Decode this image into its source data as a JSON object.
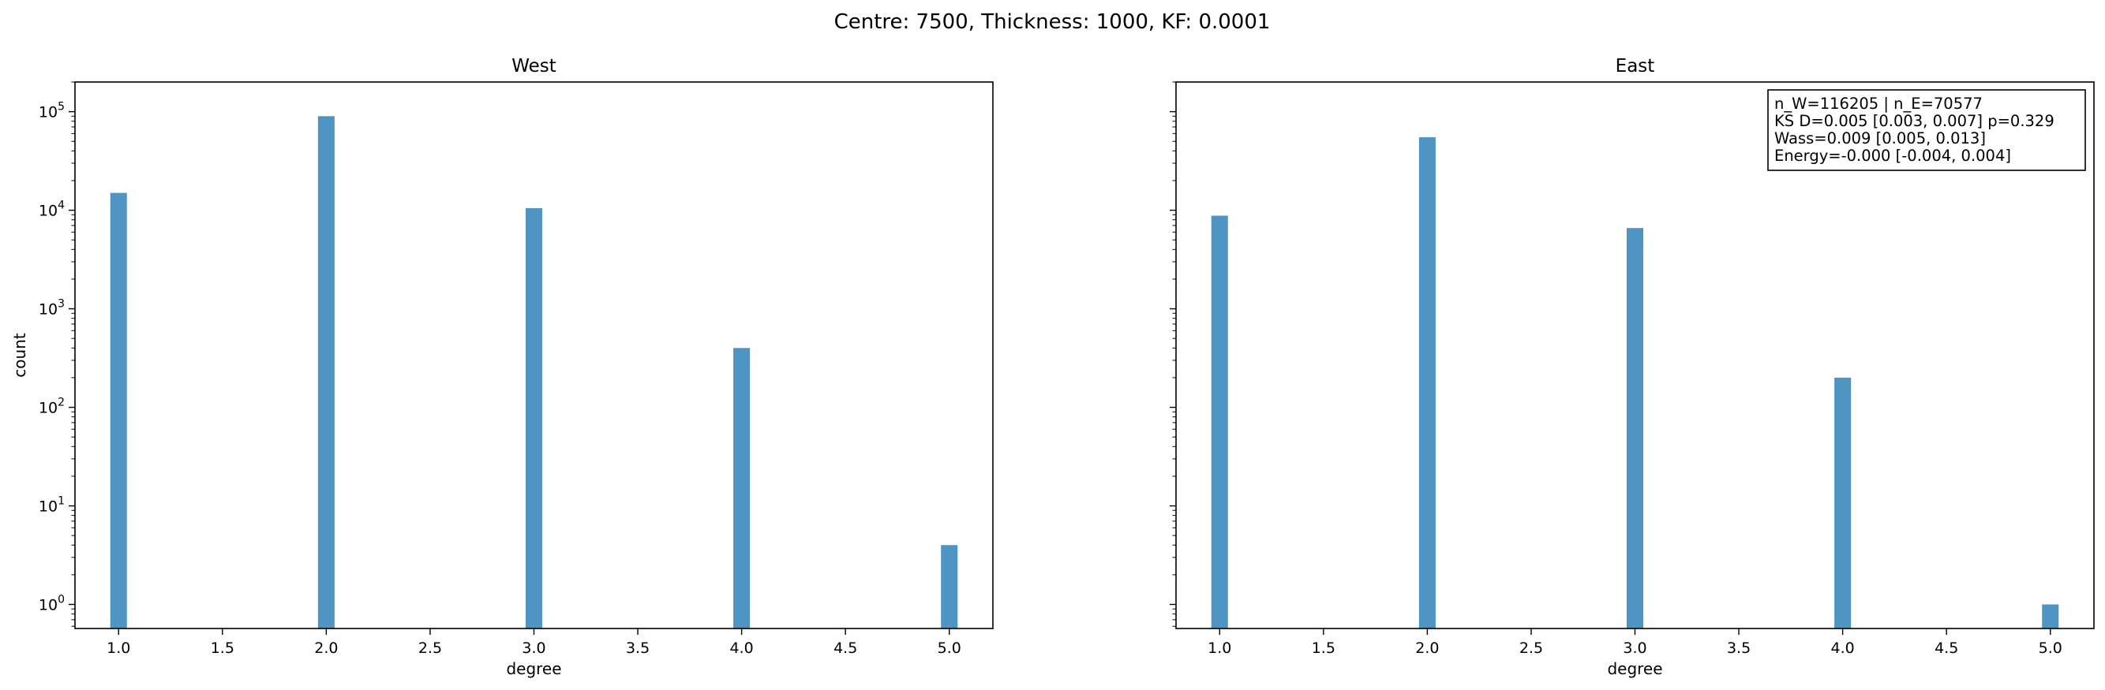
{
  "figure": {
    "suptitle": "Centre: 7500, Thickness: 1000, KF: 0.0001"
  },
  "chart_data": [
    {
      "type": "bar",
      "title": "West",
      "xlabel": "degree",
      "ylabel": "count",
      "yscale": "log",
      "xlim": [
        0.79,
        5.21
      ],
      "ylim": [
        0.57,
        200000
      ],
      "categories": [
        1,
        2,
        3,
        4,
        5
      ],
      "values": [
        15000,
        90000,
        10500,
        400,
        4
      ],
      "x_ticks": [
        "1.0",
        "1.5",
        "2.0",
        "2.5",
        "3.0",
        "3.5",
        "4.0",
        "4.5",
        "5.0"
      ],
      "y_ticks": [
        {
          "base": "10",
          "exp": "0"
        },
        {
          "base": "10",
          "exp": "1"
        },
        {
          "base": "10",
          "exp": "2"
        },
        {
          "base": "10",
          "exp": "3"
        },
        {
          "base": "10",
          "exp": "4"
        },
        {
          "base": "10",
          "exp": "5"
        }
      ],
      "bar_color": "#4f95c4",
      "grid": false
    },
    {
      "type": "bar",
      "title": "East",
      "xlabel": "degree",
      "ylabel": "",
      "yscale": "log",
      "sharey": true,
      "xlim": [
        0.79,
        5.21
      ],
      "ylim": [
        0.57,
        200000
      ],
      "categories": [
        1,
        2,
        3,
        4,
        5
      ],
      "values": [
        8800,
        55000,
        6600,
        200,
        1
      ],
      "x_ticks": [
        "1.0",
        "1.5",
        "2.0",
        "2.5",
        "3.0",
        "3.5",
        "4.0",
        "4.5",
        "5.0"
      ],
      "bar_color": "#4f95c4",
      "grid": false,
      "annotation": {
        "placement": "top-right",
        "lines": [
          "n_W=116205 | n_E=70577",
          "KS D=0.005 [0.003, 0.007]  p=0.329",
          "Wass=0.009 [0.005, 0.013]",
          "Energy=-0.000 [-0.004, 0.004]"
        ]
      }
    }
  ]
}
